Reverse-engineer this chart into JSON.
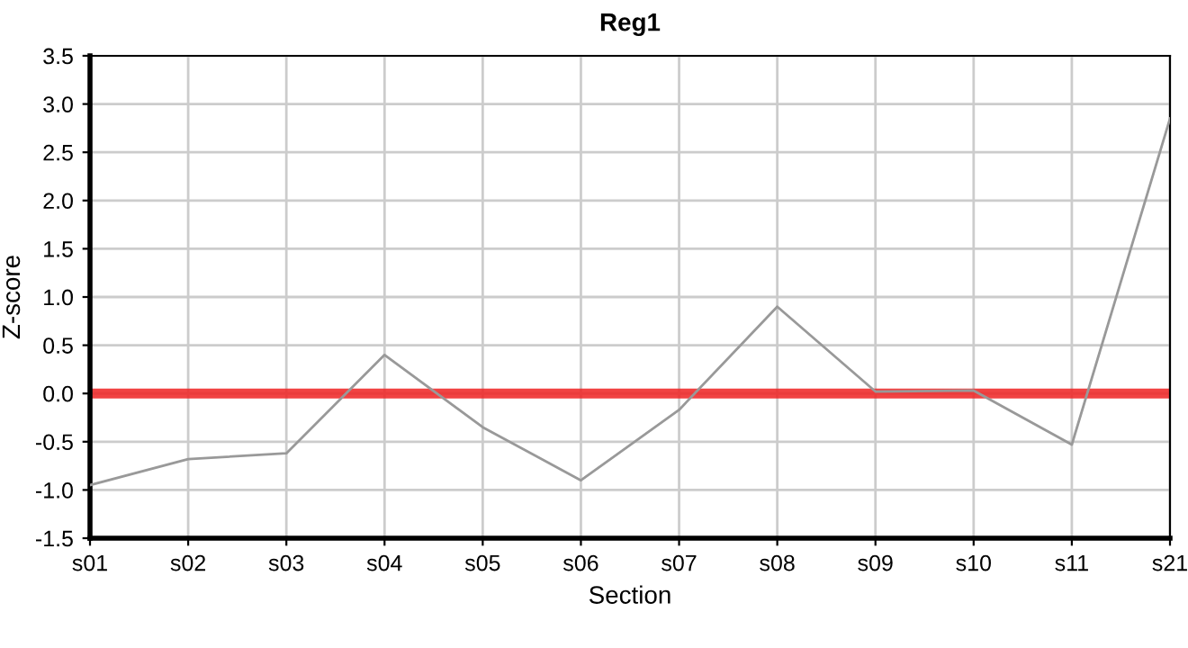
{
  "chart_data": {
    "type": "line",
    "title": "Reg1",
    "xlabel": "Section",
    "ylabel": "Z-score",
    "categories": [
      "s01",
      "s02",
      "s03",
      "s04",
      "s05",
      "s06",
      "s07",
      "s08",
      "s09",
      "s10",
      "s11",
      "s21"
    ],
    "series": [
      {
        "color": "#999999",
        "values": [
          -0.95,
          -0.68,
          -0.62,
          0.4,
          -0.35,
          -0.9,
          -0.17,
          0.9,
          0.02,
          0.03,
          -0.53,
          2.85
        ]
      }
    ],
    "ylim": [
      -1.5,
      3.5
    ],
    "yticks": [
      {
        "value": -1.5,
        "label": "-1.5"
      },
      {
        "value": -1.0,
        "label": "-1.0"
      },
      {
        "value": -0.5,
        "label": "-0.5"
      },
      {
        "value": 0.0,
        "label": "0.0"
      },
      {
        "value": 0.5,
        "label": "0.5"
      },
      {
        "value": 1.0,
        "label": "1.0"
      },
      {
        "value": 1.5,
        "label": "1.5"
      },
      {
        "value": 2.0,
        "label": "2.0"
      },
      {
        "value": 2.5,
        "label": "2.5"
      },
      {
        "value": 3.0,
        "label": "3.0"
      },
      {
        "value": 3.5,
        "label": "3.5"
      }
    ],
    "ref_lines": [
      {
        "axis": "y",
        "value": 0,
        "color": "#ee2222"
      }
    ],
    "grid": true,
    "legend": false,
    "marker": "none",
    "line_style": "solid"
  }
}
